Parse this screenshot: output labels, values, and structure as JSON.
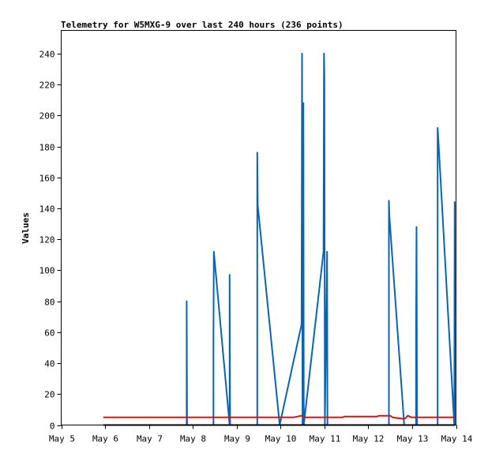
{
  "chart_data": {
    "type": "line",
    "title": "Telemetry for W5MXG-9 over last 240 hours (236 points)",
    "xlabel": "",
    "ylabel": "Values",
    "xlim": [
      0,
      9
    ],
    "ylim": [
      0,
      255
    ],
    "x_ticks": [
      {
        "v": 0,
        "label": "May 5"
      },
      {
        "v": 1,
        "label": "May 6"
      },
      {
        "v": 2,
        "label": "May 7"
      },
      {
        "v": 3,
        "label": "May 8"
      },
      {
        "v": 4,
        "label": "May 9"
      },
      {
        "v": 5,
        "label": "May 10"
      },
      {
        "v": 6,
        "label": "May 11"
      },
      {
        "v": 7,
        "label": "May 12"
      },
      {
        "v": 8,
        "label": "May 13"
      },
      {
        "v": 9,
        "label": "May 14"
      }
    ],
    "y_ticks": [
      0,
      20,
      40,
      60,
      80,
      100,
      120,
      140,
      160,
      180,
      200,
      220,
      240
    ],
    "grid": false,
    "series": [
      {
        "color": "#0a64b4",
        "points": [
          [
            0.96,
            0
          ],
          [
            2.86,
            0
          ],
          [
            2.86,
            80
          ],
          [
            2.87,
            0
          ],
          [
            3.47,
            0
          ],
          [
            3.47,
            55
          ],
          [
            3.48,
            112
          ],
          [
            3.84,
            0
          ],
          [
            3.84,
            97
          ],
          [
            3.85,
            0
          ],
          [
            4.47,
            0
          ],
          [
            4.47,
            176
          ],
          [
            4.48,
            142
          ],
          [
            4.98,
            0
          ],
          [
            5.48,
            65
          ],
          [
            5.49,
            240
          ],
          [
            5.5,
            0
          ],
          [
            5.52,
            208
          ],
          [
            5.53,
            0
          ],
          [
            5.98,
            112
          ],
          [
            5.99,
            240
          ],
          [
            6.0,
            225
          ],
          [
            6.01,
            0
          ],
          [
            6.06,
            112
          ],
          [
            6.07,
            0
          ],
          [
            7.47,
            0
          ],
          [
            7.47,
            145
          ],
          [
            7.48,
            135
          ],
          [
            7.82,
            0
          ],
          [
            8.09,
            0
          ],
          [
            8.09,
            64
          ],
          [
            8.1,
            128
          ],
          [
            8.11,
            0
          ],
          [
            8.58,
            0
          ],
          [
            8.58,
            192
          ],
          [
            8.6,
            183
          ],
          [
            8.96,
            0
          ],
          [
            8.97,
            144
          ],
          [
            8.98,
            0
          ]
        ]
      },
      {
        "color": "#000000",
        "points": [
          [
            0.96,
            0
          ],
          [
            8.98,
            0
          ]
        ]
      },
      {
        "color": "#e01010",
        "points": [
          [
            0.96,
            5
          ],
          [
            5.3,
            5
          ],
          [
            5.48,
            6
          ],
          [
            5.55,
            5
          ],
          [
            6.42,
            5
          ],
          [
            6.45,
            5.5
          ],
          [
            7.2,
            5.5
          ],
          [
            7.25,
            6
          ],
          [
            7.5,
            6
          ],
          [
            7.55,
            5
          ],
          [
            7.8,
            4
          ],
          [
            7.85,
            4.5
          ],
          [
            7.9,
            6
          ],
          [
            7.98,
            5
          ],
          [
            8.98,
            5
          ]
        ]
      }
    ]
  }
}
